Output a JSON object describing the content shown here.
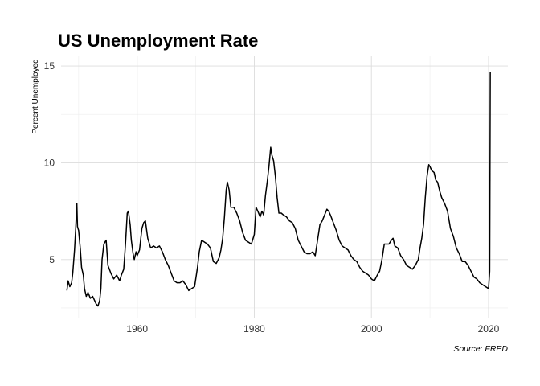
{
  "chart_data": {
    "type": "line",
    "title": "US Unemployment Rate",
    "xlabel": "",
    "ylabel": "Percent Unemployed",
    "caption": "Source: FRED",
    "xlim": [
      1947.0,
      2023.3
    ],
    "ylim": [
      2.0,
      15.5
    ],
    "x_ticks": [
      1960,
      1980,
      2000,
      2020
    ],
    "x_tick_labels": [
      "1960",
      "1980",
      "2000",
      "2020"
    ],
    "y_ticks": [
      5,
      10,
      15
    ],
    "y_tick_labels": [
      "5",
      "10",
      "15"
    ],
    "grid": true,
    "legend": "none",
    "line_color": "#000000",
    "series": [
      {
        "x": [
          1948.0,
          1948.2,
          1948.5,
          1948.8,
          1949.0,
          1949.3,
          1949.5,
          1949.7,
          1949.8,
          1950.0,
          1950.3,
          1950.5,
          1950.8,
          1951.0,
          1951.3,
          1951.6,
          1952.0,
          1952.4,
          1952.7,
          1953.0,
          1953.3,
          1953.6,
          1953.8,
          1954.0,
          1954.3,
          1954.7,
          1955.0,
          1955.5,
          1956.0,
          1956.5,
          1957.0,
          1957.3,
          1957.7,
          1958.0,
          1958.3,
          1958.5,
          1958.8,
          1959.0,
          1959.3,
          1959.5,
          1959.8,
          1960.0,
          1960.4,
          1960.8,
          1961.1,
          1961.4,
          1961.8,
          1962.3,
          1962.8,
          1963.3,
          1963.8,
          1964.3,
          1964.8,
          1965.3,
          1965.8,
          1966.3,
          1966.8,
          1967.3,
          1967.8,
          1968.3,
          1968.8,
          1969.3,
          1969.8,
          1970.3,
          1970.6,
          1971.0,
          1971.5,
          1972.0,
          1972.5,
          1973.0,
          1973.5,
          1974.0,
          1974.3,
          1974.6,
          1974.9,
          1975.2,
          1975.4,
          1975.7,
          1976.0,
          1976.5,
          1977.0,
          1977.5,
          1978.0,
          1978.5,
          1979.0,
          1979.5,
          1980.0,
          1980.3,
          1980.6,
          1981.0,
          1981.3,
          1981.6,
          1981.9,
          1982.2,
          1982.5,
          1982.8,
          1983.0,
          1983.3,
          1983.6,
          1983.9,
          1984.2,
          1984.6,
          1985.0,
          1985.5,
          1986.0,
          1986.5,
          1987.0,
          1987.5,
          1988.0,
          1988.5,
          1989.0,
          1989.5,
          1990.0,
          1990.4,
          1990.8,
          1991.2,
          1991.6,
          1992.0,
          1992.4,
          1992.7,
          1993.0,
          1993.5,
          1994.0,
          1994.5,
          1995.0,
          1995.5,
          1996.0,
          1996.5,
          1997.0,
          1997.5,
          1998.0,
          1998.5,
          1999.0,
          1999.5,
          2000.0,
          2000.5,
          2001.0,
          2001.4,
          2001.8,
          2002.2,
          2002.6,
          2003.0,
          2003.4,
          2003.7,
          2004.0,
          2004.5,
          2005.0,
          2005.5,
          2006.0,
          2006.5,
          2007.0,
          2007.5,
          2008.0,
          2008.3,
          2008.6,
          2008.9,
          2009.2,
          2009.5,
          2009.8,
          2010.0,
          2010.3,
          2010.7,
          2011.0,
          2011.3,
          2011.7,
          2012.0,
          2012.5,
          2013.0,
          2013.5,
          2014.0,
          2014.5,
          2015.0,
          2015.5,
          2016.0,
          2016.5,
          2017.0,
          2017.5,
          2018.0,
          2018.5,
          2019.0,
          2019.5,
          2020.0,
          2020.2,
          2020.3
        ],
        "y": [
          3.4,
          3.9,
          3.6,
          3.8,
          4.3,
          5.5,
          6.6,
          7.9,
          6.7,
          6.5,
          5.5,
          4.6,
          4.2,
          3.5,
          3.1,
          3.3,
          3.0,
          3.1,
          2.9,
          2.7,
          2.6,
          2.9,
          3.5,
          5.0,
          5.8,
          6.0,
          4.7,
          4.3,
          4.0,
          4.2,
          3.9,
          4.2,
          4.5,
          5.8,
          7.4,
          7.5,
          6.8,
          6.0,
          5.3,
          5.0,
          5.4,
          5.2,
          5.5,
          6.6,
          6.9,
          7.0,
          6.1,
          5.6,
          5.7,
          5.6,
          5.7,
          5.4,
          5.0,
          4.7,
          4.3,
          3.9,
          3.8,
          3.8,
          3.9,
          3.7,
          3.4,
          3.5,
          3.6,
          4.6,
          5.4,
          6.0,
          5.9,
          5.8,
          5.6,
          4.9,
          4.8,
          5.1,
          5.5,
          6.1,
          7.2,
          8.6,
          9.0,
          8.6,
          7.7,
          7.7,
          7.4,
          7.0,
          6.4,
          6.0,
          5.9,
          5.8,
          6.3,
          7.7,
          7.5,
          7.2,
          7.5,
          7.3,
          8.3,
          9.0,
          9.8,
          10.8,
          10.4,
          10.1,
          9.3,
          8.2,
          7.4,
          7.4,
          7.3,
          7.2,
          7.0,
          6.9,
          6.6,
          6.0,
          5.7,
          5.4,
          5.3,
          5.3,
          5.4,
          5.2,
          6.0,
          6.8,
          7.0,
          7.3,
          7.6,
          7.5,
          7.3,
          6.9,
          6.5,
          6.0,
          5.7,
          5.6,
          5.5,
          5.2,
          5.0,
          4.9,
          4.6,
          4.4,
          4.3,
          4.2,
          4.0,
          3.9,
          4.2,
          4.4,
          5.0,
          5.8,
          5.8,
          5.8,
          6.0,
          6.1,
          5.7,
          5.6,
          5.2,
          5.0,
          4.7,
          4.6,
          4.5,
          4.7,
          5.0,
          5.6,
          6.1,
          6.8,
          8.2,
          9.3,
          9.9,
          9.8,
          9.6,
          9.5,
          9.1,
          9.0,
          8.5,
          8.2,
          7.9,
          7.5,
          6.6,
          6.2,
          5.6,
          5.3,
          4.9,
          4.9,
          4.7,
          4.4,
          4.1,
          4.0,
          3.8,
          3.7,
          3.6,
          3.5,
          4.4,
          14.7
        ]
      }
    ]
  }
}
